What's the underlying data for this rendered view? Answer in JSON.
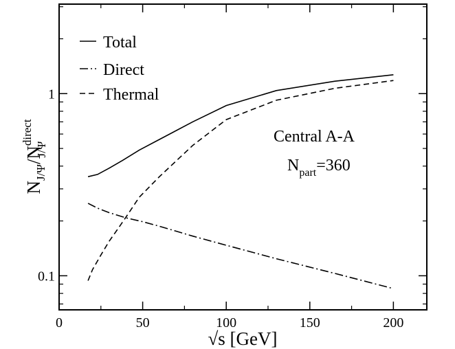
{
  "chart_data": {
    "type": "line",
    "xlabel": "√s [GeV]",
    "ylabel": {
      "base": "N",
      "num_sub": "J/Ψ",
      "slash": "/N",
      "den_sup": "direct",
      "den_sub": "J/Ψ"
    },
    "xlim": [
      0,
      220
    ],
    "ylim": [
      0.065,
      3.1
    ],
    "yscale": "log",
    "xticks": [
      {
        "value": 0,
        "label": "0"
      },
      {
        "value": 50,
        "label": "50"
      },
      {
        "value": 100,
        "label": "100"
      },
      {
        "value": 150,
        "label": "150"
      },
      {
        "value": 200,
        "label": "200"
      }
    ],
    "yticks": [
      {
        "value": 0.1,
        "label": "0.1"
      },
      {
        "value": 1,
        "label": "1"
      }
    ],
    "grid": false,
    "legend_position": "top-left",
    "series": [
      {
        "name": "Total",
        "style": "solid",
        "x": [
          17.3,
          23,
          30,
          38,
          48,
          60,
          80,
          100,
          130,
          165,
          200
        ],
        "y": [
          0.35,
          0.36,
          0.39,
          0.43,
          0.49,
          0.56,
          0.7,
          0.86,
          1.04,
          1.17,
          1.27
        ]
      },
      {
        "name": "Direct",
        "style": "dashdot",
        "x": [
          17.3,
          23,
          30,
          40,
          50,
          60,
          80,
          100,
          130,
          165,
          200
        ],
        "y": [
          0.25,
          0.235,
          0.222,
          0.208,
          0.198,
          0.187,
          0.165,
          0.147,
          0.124,
          0.103,
          0.085
        ]
      },
      {
        "name": "Thermal",
        "style": "dashed",
        "x": [
          17.3,
          20,
          25,
          30,
          35,
          40,
          48,
          60,
          80,
          100,
          130,
          165,
          200
        ],
        "y": [
          0.094,
          0.108,
          0.13,
          0.155,
          0.18,
          0.21,
          0.27,
          0.35,
          0.52,
          0.72,
          0.92,
          1.07,
          1.18
        ]
      }
    ],
    "annotations": {
      "line1": "Central A-A",
      "line2_base": "N",
      "line2_sub": "part",
      "line2_rest": "=360"
    }
  }
}
